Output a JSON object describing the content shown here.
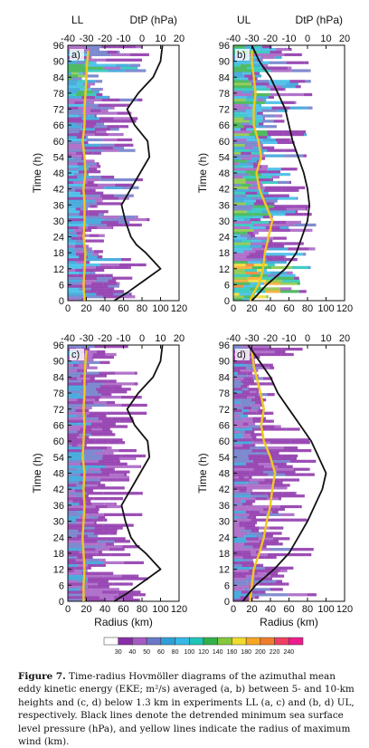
{
  "caption": {
    "label": "Figure 7.",
    "text": "Time-radius Hovmöller diagrams of the azimuthal mean eddy kinetic energy (EKE; m²/s) averaged (a, b) between 5- and 10-km heights and (c, d) below 1.3 km in experiments LL (a, c) and (b, d) UL, respectively. Black lines denote the detrended minimum sea surface level pressure (hPa), and yellow lines indicate the radius of maximum wind (km)."
  },
  "colorbar": {
    "ticks": [
      "30",
      "40",
      "50",
      "60",
      "80",
      "100",
      "120",
      "140",
      "160",
      "180",
      "200",
      "220",
      "240"
    ],
    "colors": [
      "#ffffff",
      "#8a2da8",
      "#a45cc2",
      "#6a78c8",
      "#2f9fd8",
      "#37b8e6",
      "#22c4b8",
      "#34b04a",
      "#86c63e",
      "#f0dc2c",
      "#f5a623",
      "#f07c2c",
      "#ee3e62",
      "#ec1e8c"
    ]
  },
  "axes": {
    "ylabel": "Time (h)",
    "xlabel": "Radius (km)",
    "top_label": "DtP (hPa)",
    "yticks": [
      "0",
      "6",
      "12",
      "18",
      "24",
      "30",
      "36",
      "42",
      "48",
      "54",
      "60",
      "66",
      "72",
      "78",
      "84",
      "90",
      "96"
    ],
    "xticks": [
      "0",
      "20",
      "40",
      "60",
      "80",
      "100",
      "120"
    ],
    "top_ticks": [
      "-40",
      "-30",
      "-20",
      "-10",
      "0",
      "10",
      "20"
    ]
  },
  "panels": [
    {
      "id": "a",
      "label": "a)",
      "experiment": "LL"
    },
    {
      "id": "b",
      "label": "b)",
      "experiment": "UL"
    },
    {
      "id": "c",
      "label": "c)"
    },
    {
      "id": "d",
      "label": "d)"
    }
  ],
  "chart_data": [
    {
      "type": "heatmap",
      "panel": "a",
      "xlabel": "Radius (km)",
      "ylabel": "Time (h)",
      "top_axis_label": "DtP (hPa)",
      "xlim": [
        0,
        120
      ],
      "ylim": [
        0,
        96
      ],
      "top_xlim": [
        -40,
        20
      ],
      "series": [
        {
          "name": "RMW",
          "color": "#f2c81e",
          "units": "km",
          "t": [
            0,
            6,
            12,
            18,
            24,
            30,
            36,
            42,
            48,
            54,
            60,
            66,
            72,
            78,
            84,
            90,
            94
          ],
          "r": [
            18,
            17,
            18,
            19,
            17,
            18,
            18,
            17,
            19,
            18,
            16,
            18,
            18,
            19,
            20,
            21,
            22
          ]
        },
        {
          "name": "DtP",
          "color": "#111111",
          "units": "hPa",
          "t": [
            0,
            3,
            6,
            9,
            12,
            15,
            18,
            21,
            24,
            30,
            36,
            42,
            48,
            54,
            60,
            66,
            72,
            78,
            84,
            90,
            96
          ],
          "v": [
            -15,
            -8,
            -2,
            4,
            10,
            6,
            2,
            -3,
            -6,
            -9,
            -11,
            -6,
            -1,
            4,
            3,
            -4,
            -8,
            -2,
            6,
            10,
            11
          ]
        }
      ]
    },
    {
      "type": "heatmap",
      "panel": "b",
      "xlabel": "Radius (km)",
      "ylabel": "Time (h)",
      "top_axis_label": "DtP (hPa)",
      "xlim": [
        0,
        120
      ],
      "ylim": [
        0,
        96
      ],
      "top_xlim": [
        -40,
        20
      ],
      "series": [
        {
          "name": "RMW",
          "color": "#f2c81e",
          "units": "km",
          "t": [
            0,
            3,
            6,
            9,
            12,
            18,
            24,
            30,
            36,
            42,
            48,
            54,
            60,
            66,
            72,
            78,
            84,
            90,
            94
          ],
          "r": [
            18,
            22,
            27,
            30,
            32,
            34,
            38,
            42,
            35,
            28,
            25,
            30,
            27,
            22,
            22,
            24,
            22,
            20,
            20
          ]
        },
        {
          "name": "DtP",
          "color": "#111111",
          "units": "hPa",
          "t": [
            0,
            6,
            12,
            18,
            24,
            30,
            36,
            42,
            48,
            54,
            60,
            66,
            72,
            78,
            84,
            90,
            96
          ],
          "v": [
            -30,
            -22,
            -12,
            -6,
            -3,
            0,
            1,
            0,
            -2,
            -5,
            -8,
            -10,
            -12,
            -16,
            -20,
            -26,
            -30
          ]
        }
      ]
    },
    {
      "type": "heatmap",
      "panel": "c",
      "xlabel": "Radius (km)",
      "ylabel": "Time (h)",
      "top_axis_label": "",
      "xlim": [
        0,
        120
      ],
      "ylim": [
        0,
        96
      ],
      "top_xlim": [
        -40,
        20
      ],
      "series": [
        {
          "name": "RMW",
          "color": "#f2c81e",
          "units": "km",
          "t": [
            0,
            6,
            12,
            18,
            24,
            30,
            36,
            42,
            48,
            54,
            60,
            66,
            72,
            78,
            84,
            90,
            94
          ],
          "r": [
            17,
            17,
            18,
            17,
            16,
            17,
            18,
            17,
            18,
            16,
            17,
            18,
            17,
            18,
            18,
            19,
            20
          ]
        },
        {
          "name": "DtP",
          "color": "#111111",
          "units": "hPa",
          "t": [
            0,
            3,
            6,
            9,
            12,
            15,
            18,
            21,
            24,
            30,
            36,
            42,
            48,
            54,
            60,
            66,
            72,
            78,
            84,
            90,
            96
          ],
          "v": [
            -15,
            -8,
            -2,
            4,
            10,
            6,
            2,
            -3,
            -6,
            -9,
            -11,
            -6,
            -1,
            4,
            3,
            -4,
            -8,
            -2,
            6,
            10,
            11
          ]
        }
      ]
    },
    {
      "type": "heatmap",
      "panel": "d",
      "xlabel": "Radius (km)",
      "ylabel": "Time (h)",
      "top_axis_label": "",
      "xlim": [
        0,
        120
      ],
      "ylim": [
        0,
        96
      ],
      "top_xlim": [
        -40,
        20
      ],
      "series": [
        {
          "name": "RMW",
          "color": "#f2c81e",
          "units": "km",
          "t": [
            0,
            6,
            12,
            18,
            24,
            30,
            36,
            42,
            48,
            54,
            60,
            66,
            72,
            80,
            88,
            94
          ],
          "r": [
            18,
            20,
            22,
            28,
            33,
            36,
            40,
            42,
            45,
            40,
            33,
            30,
            33,
            28,
            22,
            20
          ]
        },
        {
          "name": "DtP",
          "color": "#111111",
          "units": "hPa",
          "t": [
            0,
            6,
            12,
            18,
            24,
            30,
            36,
            42,
            48,
            54,
            60,
            66,
            72,
            78,
            84,
            90,
            96
          ],
          "v": [
            -35,
            -28,
            -18,
            -10,
            -5,
            0,
            4,
            8,
            10,
            6,
            2,
            -4,
            -10,
            -16,
            -20,
            -26,
            -32
          ]
        }
      ]
    }
  ]
}
